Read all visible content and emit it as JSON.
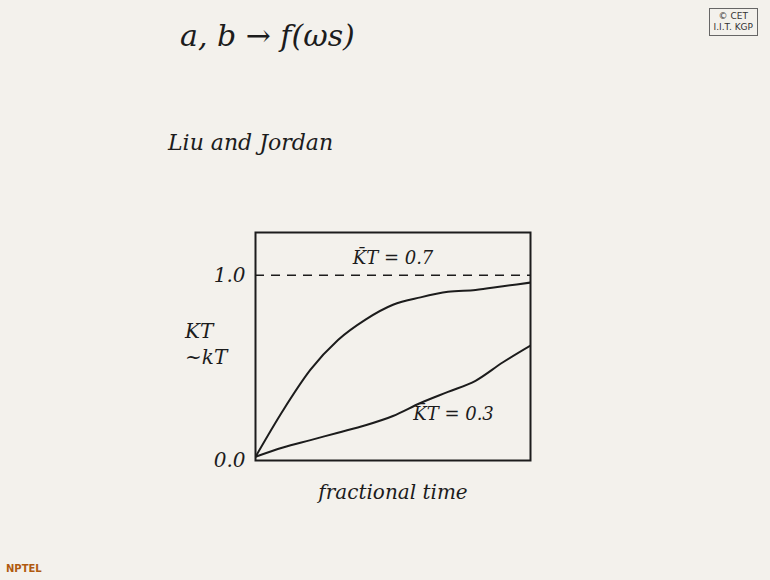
{
  "chart_data": {
    "type": "line",
    "title": "a, b → f(ωs)",
    "subtitle": "Liu and Jordan",
    "xlabel": "fractional time",
    "ylabel": [
      "KT",
      "~kT"
    ],
    "x": [
      0,
      0.1,
      0.2,
      0.3,
      0.4,
      0.5,
      0.6,
      0.7,
      0.8,
      0.9,
      1.0
    ],
    "series": [
      {
        "name": "K̄T = 0.7",
        "color": "#1c1c1c",
        "values": [
          0.02,
          0.27,
          0.49,
          0.65,
          0.76,
          0.84,
          0.88,
          0.91,
          0.92,
          0.94,
          0.96
        ]
      },
      {
        "name": "K̄T = 0.3",
        "color": "#1c1c1c",
        "values": [
          0.02,
          0.07,
          0.11,
          0.15,
          0.19,
          0.24,
          0.31,
          0.37,
          0.43,
          0.53,
          0.62
        ]
      }
    ],
    "annotations": [
      {
        "text": "K̄T = 0.7",
        "x": 0.5,
        "y": 1.09
      },
      {
        "text": "K̄T = 0.3",
        "x": 0.72,
        "y": 0.25
      }
    ],
    "hlines": [
      {
        "value": 1,
        "line_style": "dashed"
      }
    ],
    "xlim": [
      0,
      1
    ],
    "xticks": [],
    "ylim": [
      0,
      1.23
    ],
    "yticks": [
      0,
      1
    ],
    "tick_labels": "y",
    "grid": false,
    "watermark": [
      "© CET",
      "I.I.T. KGP"
    ],
    "logo": "NPTEL"
  }
}
